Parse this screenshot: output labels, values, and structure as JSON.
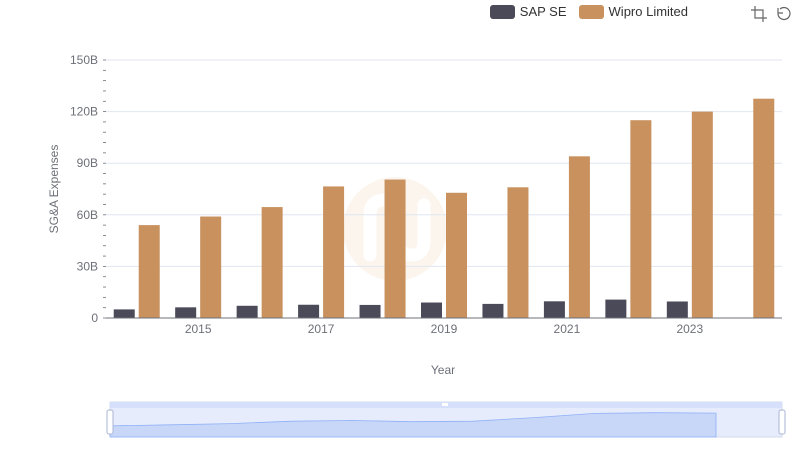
{
  "legend": [
    {
      "name": "SAP SE",
      "color": "#4a4a58"
    },
    {
      "name": "Wipro Limited",
      "color": "#c8915e"
    }
  ],
  "toolbox": {
    "zoom_icon": "crop-zoom-icon",
    "reset_icon": "restore-icon"
  },
  "chart_data": {
    "type": "bar",
    "x": [
      2014,
      2015,
      2016,
      2017,
      2018,
      2019,
      2020,
      2021,
      2022,
      2023,
      2024
    ],
    "x_tick_labels": [
      "2015",
      "2017",
      "2019",
      "2021",
      "2023"
    ],
    "y_tick_labels": [
      "0",
      "30B",
      "60B",
      "90B",
      "120B",
      "150B"
    ],
    "series": [
      {
        "name": "SAP SE",
        "color": "#4a4a58",
        "values": [
          5.0,
          6.2,
          7.1,
          7.7,
          7.6,
          9.0,
          8.2,
          9.7,
          10.7,
          9.6,
          null
        ]
      },
      {
        "name": "Wipro Limited",
        "color": "#c8915e",
        "values": [
          54,
          59,
          64.5,
          76.5,
          80.5,
          72.8,
          76,
          94,
          115,
          120,
          127.5
        ]
      }
    ],
    "xlabel": "Year",
    "ylabel": "SG&A Expenses",
    "ylim": [
      0,
      150
    ],
    "grid": true,
    "legend_position": "top-right",
    "datazoom_slider": true
  }
}
